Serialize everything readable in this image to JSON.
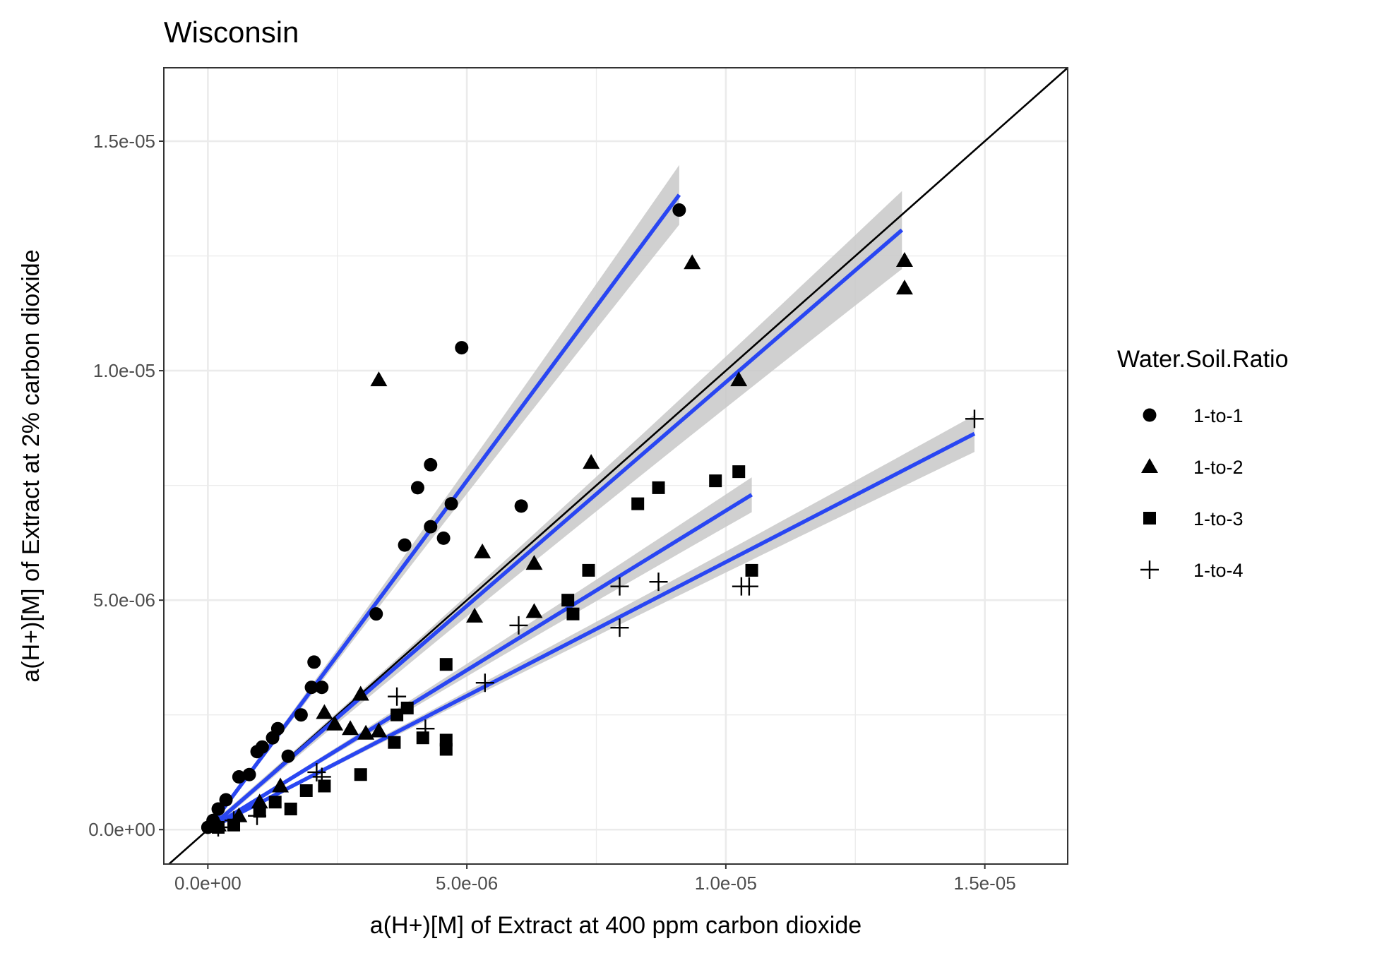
{
  "chart_data": {
    "type": "scatter",
    "title": "Wisconsin",
    "xlabel": "a(H+)[M] of Extract at 400 ppm carbon dioxide",
    "ylabel": "a(H+)[M] of Extract at 2% carbon dioxide",
    "xlim": [
      -8.5e-07,
      1.66e-05
    ],
    "ylim": [
      -7.5e-07,
      1.66e-05
    ],
    "x_ticks": [
      0,
      5e-06,
      1e-05,
      1.5e-05
    ],
    "x_tick_labels": [
      "0.0e+00",
      "5.0e-06",
      "1.0e-05",
      "1.5e-05"
    ],
    "y_ticks": [
      0,
      5e-06,
      1e-05,
      1.5e-05
    ],
    "y_tick_labels": [
      "0.0e+00",
      "5.0e-06",
      "1.0e-05",
      "1.5e-05"
    ],
    "grid": true,
    "legend": {
      "title": "Water.Soil.Ratio",
      "position": "right"
    },
    "reference_line": {
      "slope": 1,
      "intercept": 0
    },
    "colors": {
      "points": "#000000",
      "fit_line": "#2946f2",
      "confidence_band": "#c8c8c8",
      "grid": "#ebebeb",
      "panel_border": "#333333"
    },
    "series": [
      {
        "name": "1-to-1",
        "shape": "circle",
        "fit": {
          "slope": 1.52,
          "x_range": [
            0,
            9.1e-06
          ],
          "ci_half_width_at_max": 6.5e-07
        },
        "points": [
          [
            9.1e-06,
            1.35e-05
          ],
          [
            4.9e-06,
            1.05e-05
          ],
          [
            4.3e-06,
            7.95e-06
          ],
          [
            4.05e-06,
            7.45e-06
          ],
          [
            4.7e-06,
            7.1e-06
          ],
          [
            6.05e-06,
            7.05e-06
          ],
          [
            4.3e-06,
            6.6e-06
          ],
          [
            4.55e-06,
            6.35e-06
          ],
          [
            3.8e-06,
            6.2e-06
          ],
          [
            3.25e-06,
            4.7e-06
          ],
          [
            2.05e-06,
            3.65e-06
          ],
          [
            2.2e-06,
            3.1e-06
          ],
          [
            2e-06,
            3.1e-06
          ],
          [
            1.35e-06,
            2.2e-06
          ],
          [
            1.8e-06,
            2.5e-06
          ],
          [
            1.25e-06,
            2e-06
          ],
          [
            1.55e-06,
            1.6e-06
          ],
          [
            1.05e-06,
            1.8e-06
          ],
          [
            9.5e-07,
            1.7e-06
          ],
          [
            6e-07,
            1.15e-06
          ],
          [
            8e-07,
            1.2e-06
          ],
          [
            3.5e-07,
            6.5e-07
          ],
          [
            2e-07,
            4.5e-07
          ],
          [
            1e-07,
            2e-07
          ],
          [
            0.0,
            5e-08
          ],
          [
            1.5e-07,
            1e-07
          ]
        ]
      },
      {
        "name": "1-to-2",
        "shape": "triangle",
        "fit": {
          "slope": 0.975,
          "x_range": [
            0,
            1.34e-05
          ],
          "ci_half_width_at_max": 8.5e-07
        },
        "points": [
          [
            3.3e-06,
            9.8e-06
          ],
          [
            9.35e-06,
            1.235e-05
          ],
          [
            1.345e-05,
            1.24e-05
          ],
          [
            1.345e-05,
            1.18e-05
          ],
          [
            1.025e-05,
            9.8e-06
          ],
          [
            7.4e-06,
            8e-06
          ],
          [
            5.3e-06,
            6.05e-06
          ],
          [
            6.3e-06,
            5.8e-06
          ],
          [
            5.15e-06,
            4.65e-06
          ],
          [
            6.3e-06,
            4.75e-06
          ],
          [
            2.95e-06,
            2.95e-06
          ],
          [
            2.25e-06,
            2.55e-06
          ],
          [
            2.45e-06,
            2.3e-06
          ],
          [
            2.75e-06,
            2.2e-06
          ],
          [
            3.05e-06,
            2.1e-06
          ],
          [
            3.3e-06,
            2.15e-06
          ],
          [
            1.4e-06,
            9.5e-07
          ],
          [
            1e-06,
            6e-07
          ],
          [
            6e-07,
            3e-07
          ],
          [
            2e-07,
            1e-07
          ]
        ]
      },
      {
        "name": "1-to-3",
        "shape": "square",
        "fit": {
          "slope": 0.695,
          "x_range": [
            0,
            1.05e-05
          ],
          "ci_half_width_at_max": 3.8e-07
        },
        "points": [
          [
            1.025e-05,
            7.8e-06
          ],
          [
            9.8e-06,
            7.6e-06
          ],
          [
            8.7e-06,
            7.45e-06
          ],
          [
            8.3e-06,
            7.1e-06
          ],
          [
            7.35e-06,
            5.65e-06
          ],
          [
            1.05e-05,
            5.65e-06
          ],
          [
            6.95e-06,
            5e-06
          ],
          [
            7.05e-06,
            4.7e-06
          ],
          [
            4.6e-06,
            3.6e-06
          ],
          [
            3.85e-06,
            2.65e-06
          ],
          [
            3.65e-06,
            2.5e-06
          ],
          [
            4.15e-06,
            2e-06
          ],
          [
            4.6e-06,
            1.95e-06
          ],
          [
            3.6e-06,
            1.9e-06
          ],
          [
            4.6e-06,
            1.75e-06
          ],
          [
            2.95e-06,
            1.2e-06
          ],
          [
            2.25e-06,
            9.5e-07
          ],
          [
            1.9e-06,
            8.5e-07
          ],
          [
            1.6e-06,
            4.5e-07
          ],
          [
            1.3e-06,
            6e-07
          ],
          [
            1e-06,
            4e-07
          ],
          [
            5e-07,
            1e-07
          ],
          [
            2e-07,
            5e-08
          ]
        ]
      },
      {
        "name": "1-to-4",
        "shape": "plus",
        "fit": {
          "slope": 0.583,
          "x_range": [
            0,
            1.48e-05
          ],
          "ci_half_width_at_max": 4e-07
        },
        "points": [
          [
            1.48e-05,
            8.95e-06
          ],
          [
            8.7e-06,
            5.4e-06
          ],
          [
            1.03e-05,
            5.3e-06
          ],
          [
            1.045e-05,
            5.3e-06
          ],
          [
            7.95e-06,
            5.3e-06
          ],
          [
            7.95e-06,
            4.4e-06
          ],
          [
            6e-06,
            4.45e-06
          ],
          [
            5.35e-06,
            3.2e-06
          ],
          [
            3.65e-06,
            2.9e-06
          ],
          [
            4.2e-06,
            2.2e-06
          ],
          [
            2.1e-06,
            1.25e-06
          ],
          [
            2.2e-06,
            1.15e-06
          ],
          [
            9.5e-07,
            3e-07
          ],
          [
            5e-07,
            2e-07
          ],
          [
            2e-07,
            5e-08
          ]
        ]
      }
    ]
  }
}
